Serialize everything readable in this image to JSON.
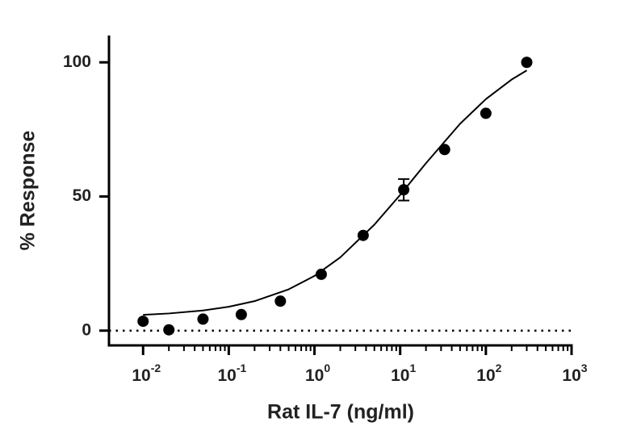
{
  "chart_data": {
    "type": "scatter",
    "x_label": "Rat IL-7 (ng/ml)",
    "y_label": "% Response",
    "x_scale": "log",
    "xlim": [
      0.004,
      1000
    ],
    "ylim": [
      -5.5,
      110
    ],
    "xticks": [
      {
        "value": 0.01,
        "label": "10",
        "exponent": "-2"
      },
      {
        "value": 0.1,
        "label": "10",
        "exponent": "-1"
      },
      {
        "value": 1,
        "label": "10",
        "exponent": "0"
      },
      {
        "value": 10,
        "label": "10",
        "exponent": "1"
      },
      {
        "value": 100,
        "label": "10",
        "exponent": "2"
      },
      {
        "value": 1000,
        "label": "10",
        "exponent": "3"
      }
    ],
    "yticks": [
      0,
      50,
      100
    ],
    "minor_ticks": true,
    "hline": 0,
    "series": [
      {
        "type": "scatter",
        "color": "#000000",
        "x": [
          0.01,
          0.02,
          0.05,
          0.14,
          0.4,
          1.2,
          3.7,
          11,
          33,
          100,
          300
        ],
        "values": [
          3.5,
          0.3,
          4.3,
          6,
          11,
          21,
          35.5,
          52.5,
          67.5,
          81,
          100
        ],
        "errors": [
          null,
          null,
          null,
          null,
          null,
          null,
          null,
          4,
          null,
          null,
          null
        ]
      },
      {
        "type": "line",
        "color": "#000000",
        "x": [
          0.01,
          0.02,
          0.05,
          0.1,
          0.2,
          0.5,
          1,
          2,
          5,
          10,
          20,
          50,
          100,
          200,
          300
        ],
        "values": [
          5.9,
          6.4,
          7.5,
          8.9,
          11.0,
          15.4,
          20.4,
          27.3,
          39.5,
          50.6,
          62.4,
          77.1,
          86.3,
          93.6,
          97.0
        ]
      }
    ]
  }
}
